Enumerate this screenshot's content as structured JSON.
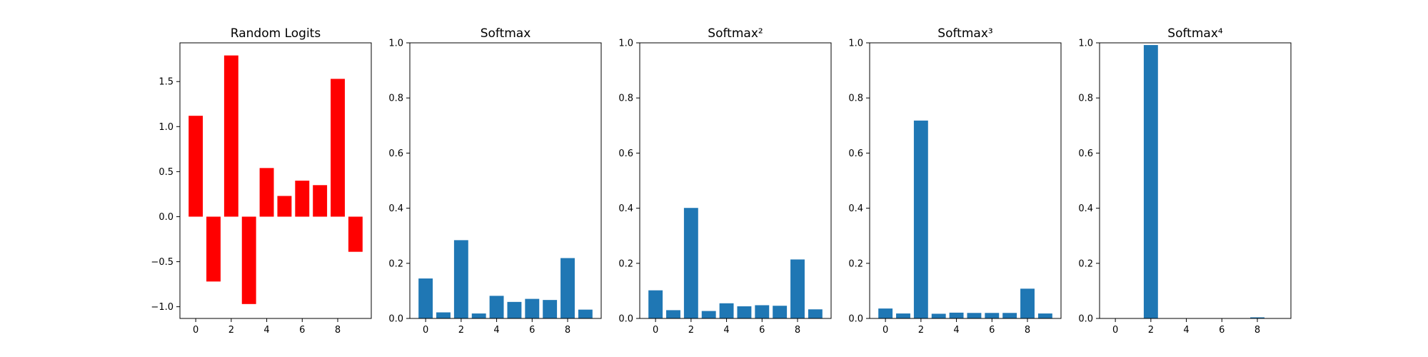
{
  "chart_data": [
    {
      "type": "bar",
      "title": "Random Logits",
      "color": "#ff0000",
      "categories": [
        0,
        1,
        2,
        3,
        4,
        5,
        6,
        7,
        8,
        9
      ],
      "values": [
        1.12,
        -0.72,
        1.79,
        -0.97,
        0.54,
        0.23,
        0.4,
        0.35,
        1.53,
        -0.39
      ],
      "xticks": [
        "0",
        "2",
        "4",
        "6",
        "8"
      ],
      "yticks": [
        "−1.0",
        "−0.5",
        "0.0",
        "0.5",
        "1.0",
        "1.5"
      ],
      "ylim": [
        -1.13,
        1.93
      ]
    },
    {
      "type": "bar",
      "title": "Softmax",
      "color": "#1f77b4",
      "categories": [
        0,
        1,
        2,
        3,
        4,
        5,
        6,
        7,
        8,
        9
      ],
      "values": [
        0.145,
        0.022,
        0.284,
        0.018,
        0.082,
        0.06,
        0.071,
        0.067,
        0.219,
        0.032
      ],
      "xticks": [
        "0",
        "2",
        "4",
        "6",
        "8"
      ],
      "yticks": [
        "0.0",
        "0.2",
        "0.4",
        "0.6",
        "0.8",
        "1.0"
      ],
      "ylim": [
        0,
        1
      ]
    },
    {
      "type": "bar",
      "title": "Softmax²",
      "color": "#1f77b4",
      "categories": [
        0,
        1,
        2,
        3,
        4,
        5,
        6,
        7,
        8,
        9
      ],
      "values": [
        0.102,
        0.03,
        0.401,
        0.027,
        0.055,
        0.044,
        0.048,
        0.046,
        0.214,
        0.033
      ],
      "xticks": [
        "0",
        "2",
        "4",
        "6",
        "8"
      ],
      "yticks": [
        "0.0",
        "0.2",
        "0.4",
        "0.6",
        "0.8",
        "1.0"
      ],
      "ylim": [
        0,
        1
      ]
    },
    {
      "type": "bar",
      "title": "Softmax³",
      "color": "#1f77b4",
      "categories": [
        0,
        1,
        2,
        3,
        4,
        5,
        6,
        7,
        8,
        9
      ],
      "values": [
        0.036,
        0.018,
        0.718,
        0.017,
        0.021,
        0.02,
        0.02,
        0.02,
        0.108,
        0.018
      ],
      "xticks": [
        "0",
        "2",
        "4",
        "6",
        "8"
      ],
      "yticks": [
        "0.0",
        "0.2",
        "0.4",
        "0.6",
        "0.8",
        "1.0"
      ],
      "ylim": [
        0,
        1
      ]
    },
    {
      "type": "bar",
      "title": "Softmax⁴",
      "color": "#1f77b4",
      "categories": [
        0,
        1,
        2,
        3,
        4,
        5,
        6,
        7,
        8,
        9
      ],
      "values": [
        0.0,
        0.0,
        0.992,
        0.0,
        0.0,
        0.0,
        0.0,
        0.0,
        0.004,
        0.0
      ],
      "xticks": [
        "0",
        "2",
        "4",
        "6",
        "8"
      ],
      "yticks": [
        "0.0",
        "0.2",
        "0.4",
        "0.6",
        "0.8",
        "1.0"
      ],
      "ylim": [
        0,
        1
      ]
    }
  ]
}
